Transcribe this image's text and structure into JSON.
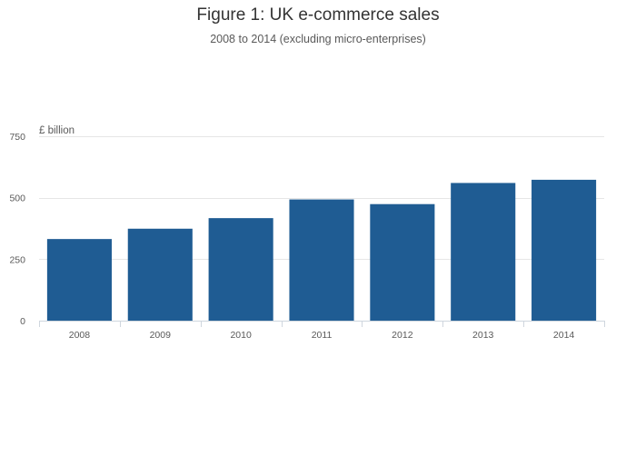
{
  "chart_data": {
    "type": "bar",
    "title": "Figure 1: UK e-commerce sales",
    "subtitle": "2008 to 2014 (excluding micro-enterprises)",
    "ylabel": "£ billion",
    "xlabel": "",
    "categories": [
      "2008",
      "2009",
      "2010",
      "2011",
      "2012",
      "2013",
      "2014"
    ],
    "values": [
      332,
      374,
      417,
      493,
      474,
      560,
      573
    ],
    "ylim": [
      0,
      750
    ],
    "yticks": [
      0,
      250,
      500,
      750
    ],
    "ytick_labels": [
      "0",
      "250",
      "500",
      "750"
    ],
    "grid": true,
    "legend": "none",
    "bar_color": "#1f5c93",
    "gridline_color": "#e6e6e6",
    "axis_color": "#cfd6de"
  }
}
